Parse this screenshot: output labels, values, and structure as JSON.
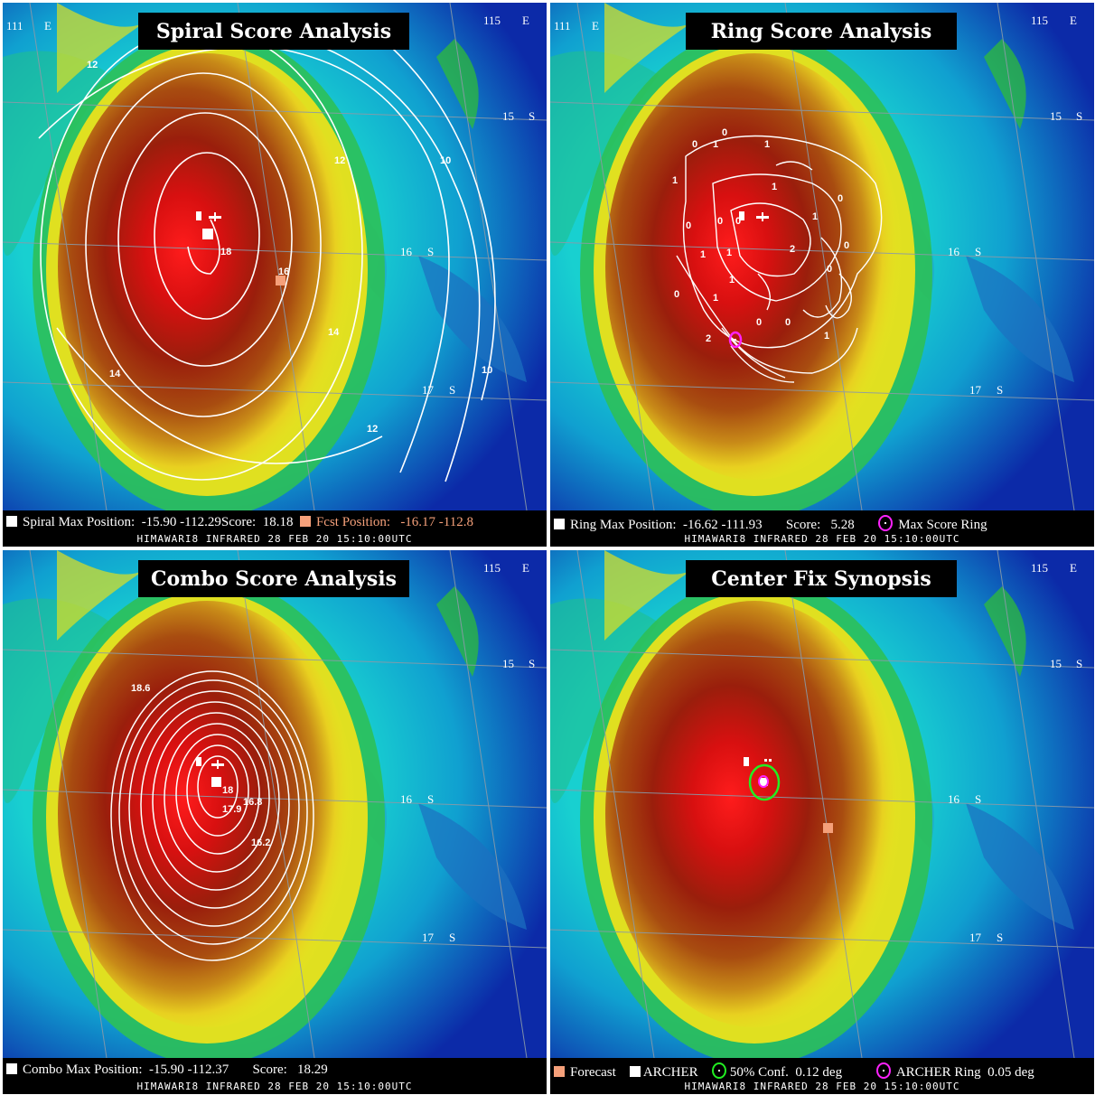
{
  "footer_line": "HIMAWARI8  INFRARED  28 FEB 20  15:10:00UTC",
  "grid_labels": {
    "lon_111": "111",
    "lon_115": "115",
    "east": "E",
    "lat_15": "15",
    "lat_16": "16",
    "lat_17": "17",
    "south": "S"
  },
  "colors": {
    "accent_forecast": "#f5a07a",
    "conf_ring": "#22ee22",
    "archer_ring": "#ff22ff"
  },
  "panels": {
    "spiral": {
      "title": "Spiral Score Analysis",
      "legend_label": "Spiral Max Position:",
      "legend_value": "-15.90 -112.29",
      "score_label": "Score:",
      "score_value": "18.18",
      "fcst_label": "Fcst Position:",
      "fcst_value": "-16.17 -112.8",
      "contour_labels": [
        "12",
        "12",
        "10",
        "18",
        "16",
        "14",
        "14",
        "12",
        "10"
      ]
    },
    "ring": {
      "title": "Ring Score Analysis",
      "legend_label": "Ring Max Position:",
      "legend_value": "-16.62 -111.93",
      "score_label": "Score:",
      "score_value": "5.28",
      "ring_label": "Max Score Ring",
      "contour_labels": [
        "0",
        "1",
        "1",
        "0",
        "1",
        "1",
        "0",
        "0",
        "0",
        "0",
        "1",
        "1",
        "2",
        "0",
        "1",
        "1",
        "0",
        "0",
        "1",
        "2",
        "0",
        "0",
        "1"
      ]
    },
    "combo": {
      "title": "Combo Score Analysis",
      "legend_label": "Combo Max Position:",
      "legend_value": "-15.90 -112.37",
      "score_label": "Score:",
      "score_value": "18.29",
      "contour_labels": [
        "18.6",
        "18",
        "17.9",
        "16.8",
        "16.2"
      ]
    },
    "synopsis": {
      "title": "Center Fix Synopsis",
      "forecast_label": "Forecast",
      "archer_label": "ARCHER",
      "conf_label": "50% Conf.",
      "conf_value": "0.12 deg",
      "ring_label": "ARCHER Ring",
      "ring_value": "0.05 deg"
    }
  }
}
